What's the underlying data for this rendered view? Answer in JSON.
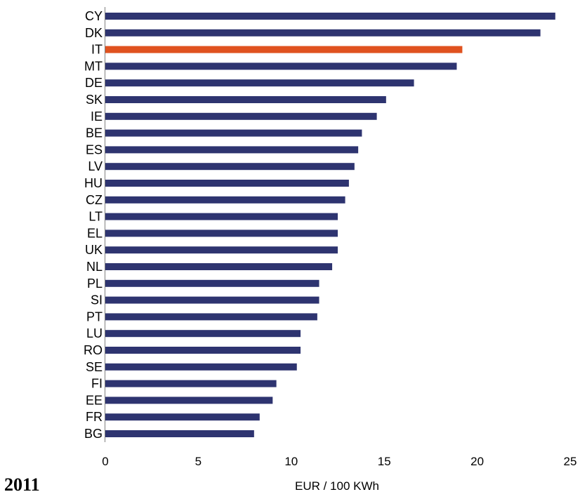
{
  "year_label": "2011",
  "colors": {
    "default_bar": "#2e3470",
    "highlight_bar": "#e0521f",
    "axis": "#808080"
  },
  "chart_data": {
    "type": "bar",
    "orientation": "horizontal",
    "title": "",
    "xlabel": "EUR / 100 KWh",
    "ylabel": "",
    "xlim": [
      0,
      25
    ],
    "xticks": [
      0,
      5,
      10,
      15,
      20,
      25
    ],
    "grid": false,
    "highlight": "IT",
    "categories": [
      "CY",
      "DK",
      "IT",
      "MT",
      "DE",
      "SK",
      "IE",
      "BE",
      "ES",
      "LV",
      "HU",
      "CZ",
      "LT",
      "EL",
      "UK",
      "NL",
      "PL",
      "SI",
      "PT",
      "LU",
      "RO",
      "SE",
      "FI",
      "EE",
      "FR",
      "BG"
    ],
    "values": [
      24.2,
      23.4,
      19.2,
      18.9,
      16.6,
      15.1,
      14.6,
      13.8,
      13.6,
      13.4,
      13.1,
      12.9,
      12.5,
      12.5,
      12.5,
      12.2,
      11.5,
      11.5,
      11.4,
      10.5,
      10.5,
      10.3,
      9.2,
      9.0,
      8.3,
      8.0
    ]
  }
}
